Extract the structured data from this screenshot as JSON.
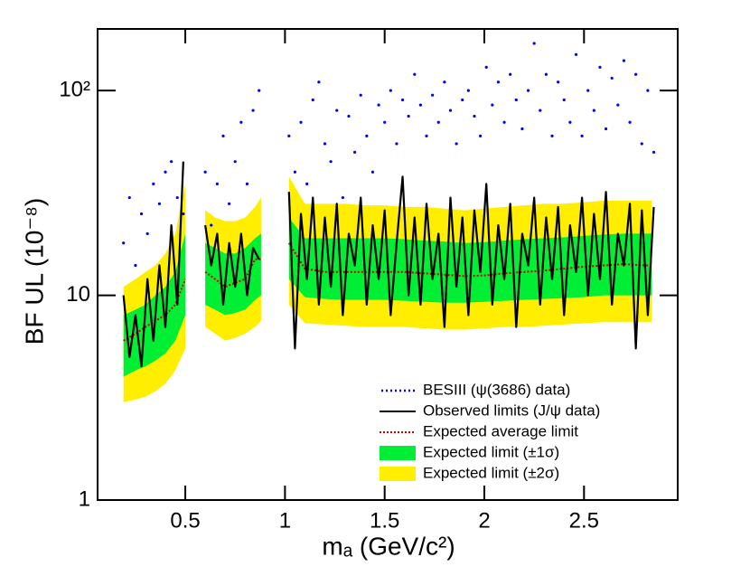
{
  "chart_data": {
    "type": "line",
    "xlabel": "mₐ (GeV/c²)",
    "ylabel": "BF UL (10⁻⁸)",
    "xlim": [
      0.06,
      2.97
    ],
    "xticks": [
      0.5,
      1,
      1.5,
      2,
      2.5
    ],
    "ylim": [
      1,
      200
    ],
    "yticks": [
      1,
      10,
      {
        "value": 100,
        "label": "10²"
      }
    ],
    "ylog": true,
    "legend": "lower right",
    "series": [
      {
        "name": "BESIII (ψ(3686) data)",
        "color": "#0000ff",
        "kind": "scatter",
        "x": [
          0.19,
          0.22,
          0.25,
          0.28,
          0.31,
          0.34,
          0.37,
          0.4,
          0.43,
          0.46,
          0.49,
          0.55,
          0.6,
          0.63,
          0.66,
          0.69,
          0.72,
          0.75,
          0.78,
          0.81,
          0.84,
          0.87,
          0.95,
          1.02,
          1.05,
          1.08,
          1.11,
          1.14,
          1.17,
          1.2,
          1.23,
          1.26,
          1.29,
          1.32,
          1.35,
          1.38,
          1.41,
          1.44,
          1.47,
          1.5,
          1.53,
          1.56,
          1.59,
          1.62,
          1.65,
          1.68,
          1.71,
          1.74,
          1.77,
          1.8,
          1.83,
          1.86,
          1.89,
          1.92,
          1.95,
          1.98,
          2.01,
          2.04,
          2.07,
          2.1,
          2.13,
          2.16,
          2.19,
          2.22,
          2.25,
          2.28,
          2.31,
          2.34,
          2.37,
          2.4,
          2.43,
          2.46,
          2.49,
          2.52,
          2.55,
          2.58,
          2.61,
          2.64,
          2.67,
          2.7,
          2.73,
          2.76,
          2.79,
          2.82,
          2.85
        ],
        "values": [
          18,
          30,
          14,
          25,
          20,
          35,
          28,
          40,
          45,
          30,
          25,
          null,
          40,
          22,
          35,
          60,
          28,
          45,
          70,
          35,
          80,
          100,
          null,
          60,
          40,
          70,
          35,
          90,
          110,
          55,
          45,
          80,
          30,
          75,
          50,
          95,
          60,
          40,
          85,
          70,
          100,
          55,
          90,
          75,
          120,
          85,
          60,
          95,
          70,
          110,
          80,
          55,
          90,
          100,
          75,
          60,
          130,
          85,
          110,
          70,
          120,
          90,
          65,
          100,
          170,
          80,
          120,
          60,
          110,
          90,
          70,
          150,
          60,
          100,
          80,
          130,
          65,
          115,
          85,
          140,
          70,
          120,
          55,
          100,
          50
        ]
      },
      {
        "name": "Observed limits (J/ψ data)",
        "color": "#000000",
        "kind": "line",
        "linestyle": "solid",
        "x": [
          0.19,
          0.22,
          0.25,
          0.28,
          0.31,
          0.34,
          0.37,
          0.4,
          0.43,
          0.46,
          0.49,
          0.55,
          0.6,
          0.63,
          0.66,
          0.69,
          0.72,
          0.75,
          0.78,
          0.81,
          0.84,
          0.87,
          0.95,
          1.02,
          1.05,
          1.08,
          1.11,
          1.14,
          1.17,
          1.2,
          1.23,
          1.26,
          1.29,
          1.32,
          1.35,
          1.38,
          1.41,
          1.44,
          1.47,
          1.5,
          1.53,
          1.56,
          1.59,
          1.62,
          1.65,
          1.68,
          1.71,
          1.74,
          1.77,
          1.8,
          1.83,
          1.86,
          1.89,
          1.92,
          1.95,
          1.98,
          2.01,
          2.04,
          2.07,
          2.1,
          2.13,
          2.16,
          2.19,
          2.22,
          2.25,
          2.28,
          2.31,
          2.34,
          2.37,
          2.4,
          2.43,
          2.46,
          2.49,
          2.52,
          2.55,
          2.58,
          2.61,
          2.64,
          2.67,
          2.7,
          2.73,
          2.76,
          2.79,
          2.82,
          2.85
        ],
        "values": [
          10,
          5,
          8,
          4.5,
          12,
          6,
          14,
          7,
          22,
          9,
          45,
          null,
          22,
          14,
          20,
          9,
          18,
          11,
          20,
          10,
          17,
          15,
          null,
          32,
          5.5,
          25,
          12,
          30,
          9,
          24,
          11,
          28,
          8,
          20,
          14,
          30,
          9,
          22,
          12,
          26,
          8,
          18,
          38,
          10,
          24,
          9,
          28,
          12,
          20,
          7,
          30,
          11,
          24,
          8,
          26,
          13,
          35,
          9,
          22,
          12,
          28,
          7,
          20,
          14,
          30,
          9,
          24,
          12,
          27,
          8,
          22,
          13,
          30,
          10,
          25,
          12,
          32,
          9,
          20,
          14,
          28,
          5.5,
          26,
          8,
          27
        ]
      },
      {
        "name": "Expected average limit",
        "color": "#cc0000",
        "kind": "line",
        "linestyle": "dotted",
        "x": [
          0.19,
          0.25,
          0.3,
          0.35,
          0.4,
          0.45,
          0.5,
          0.55,
          0.6,
          0.65,
          0.7,
          0.75,
          0.8,
          0.85,
          0.88,
          0.95,
          1.02,
          1.1,
          1.2,
          1.3,
          1.4,
          1.5,
          1.6,
          1.7,
          1.8,
          1.9,
          2,
          2.1,
          2.2,
          2.3,
          2.4,
          2.5,
          2.6,
          2.7,
          2.8,
          2.84
        ],
        "values": [
          6,
          6.5,
          7,
          7.5,
          8,
          9,
          12,
          null,
          13,
          12,
          11,
          11.5,
          12,
          15,
          15,
          null,
          18,
          13.5,
          13,
          13,
          13,
          13,
          13,
          12.8,
          12.6,
          12.4,
          12.5,
          12.8,
          13,
          13.2,
          13.5,
          13.8,
          14,
          14.2,
          14,
          14
        ]
      },
      {
        "name": "Expected limit (±1σ)",
        "color": "#00ee33",
        "kind": "band",
        "x": [
          0.19,
          0.25,
          0.3,
          0.35,
          0.4,
          0.45,
          0.5,
          0.55,
          0.6,
          0.65,
          0.7,
          0.75,
          0.8,
          0.85,
          0.88,
          0.95,
          1.02,
          1.1,
          1.2,
          1.3,
          1.4,
          1.5,
          1.6,
          1.7,
          1.8,
          1.9,
          2,
          2.1,
          2.2,
          2.3,
          2.4,
          2.5,
          2.6,
          2.7,
          2.8,
          2.84
        ],
        "lower": [
          4,
          4.3,
          4.5,
          4.8,
          5.2,
          6,
          8,
          null,
          9,
          8.5,
          8,
          8.2,
          8.5,
          9.5,
          10,
          null,
          12,
          9.8,
          9.6,
          9.5,
          9.5,
          9.5,
          9.4,
          9.3,
          9.2,
          9.2,
          9.3,
          9.4,
          9.5,
          9.6,
          9.7,
          9.8,
          10,
          10,
          10,
          10
        ],
        "upper": [
          8,
          8.5,
          9,
          10,
          11,
          13,
          20,
          null,
          18,
          17,
          16,
          16,
          17,
          19,
          20,
          null,
          24,
          19,
          19,
          19,
          19,
          19,
          18.8,
          18.5,
          18.3,
          18,
          18.2,
          18.5,
          18.8,
          19,
          19.2,
          19.5,
          19.8,
          20,
          20,
          20
        ]
      },
      {
        "name": "Expected limit (±2σ)",
        "color": "#ffee00",
        "kind": "band",
        "x": [
          0.19,
          0.25,
          0.3,
          0.35,
          0.4,
          0.45,
          0.5,
          0.55,
          0.6,
          0.65,
          0.7,
          0.75,
          0.8,
          0.85,
          0.88,
          0.95,
          1.02,
          1.1,
          1.2,
          1.3,
          1.4,
          1.5,
          1.6,
          1.7,
          1.8,
          1.9,
          2,
          2.1,
          2.2,
          2.3,
          2.4,
          2.5,
          2.6,
          2.7,
          2.8,
          2.84
        ],
        "lower": [
          3,
          3.1,
          3.2,
          3.4,
          3.7,
          4.3,
          5.5,
          null,
          7,
          6.5,
          6,
          6.2,
          6.5,
          7,
          7.5,
          null,
          9,
          7.3,
          7.2,
          7.1,
          7,
          7,
          7,
          6.9,
          6.8,
          6.8,
          6.9,
          7,
          7,
          7.1,
          7.2,
          7.3,
          7.4,
          7.4,
          7.4,
          7.4
        ],
        "upper": [
          11,
          12,
          13,
          14,
          16,
          20,
          35,
          null,
          26,
          24,
          23,
          23,
          24,
          27,
          30,
          null,
          38,
          28,
          28,
          28,
          27.5,
          27.5,
          27,
          27,
          26.5,
          26,
          26.5,
          27,
          27.5,
          28,
          28,
          28.5,
          29,
          29,
          29,
          29
        ]
      }
    ]
  }
}
